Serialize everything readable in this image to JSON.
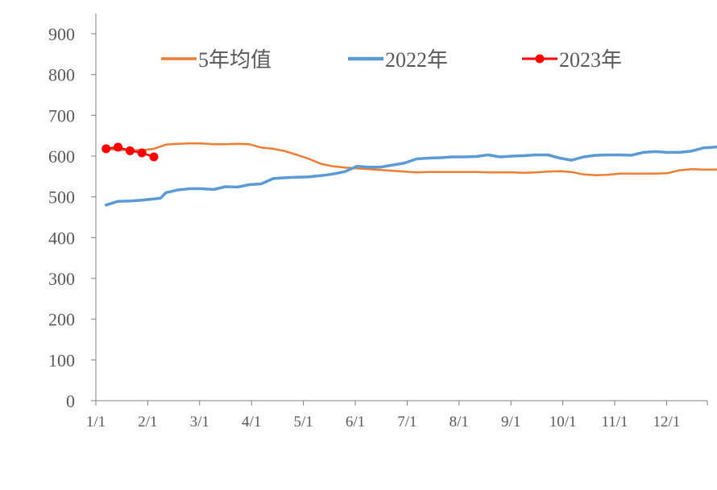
{
  "chart_data": {
    "type": "line",
    "title": "",
    "xlabel": "",
    "ylabel": "",
    "ylim": [
      0,
      900
    ],
    "y_ticks": [
      "0",
      "100",
      "200",
      "300",
      "400",
      "500",
      "600",
      "700",
      "800",
      "900"
    ],
    "x_tick_labels": [
      "1/1",
      "2/1",
      "3/1",
      "4/1",
      "5/1",
      "6/1",
      "7/1",
      "8/1",
      "9/1",
      "10/1",
      "11/1",
      "12/1"
    ],
    "x_tick_days": [
      1,
      32,
      60,
      91,
      121,
      152,
      182,
      213,
      244,
      274,
      305,
      335
    ],
    "x_range_days": [
      1,
      365
    ],
    "grid": false,
    "legend_position": "top",
    "series": [
      {
        "name": "5年均值",
        "color": "#ED7D31",
        "marker": "none",
        "points": [
          [
            7,
            618
          ],
          [
            14,
            615
          ],
          [
            21,
            615
          ],
          [
            28,
            614
          ],
          [
            35,
            618
          ],
          [
            42,
            628
          ],
          [
            49,
            630
          ],
          [
            56,
            631
          ],
          [
            63,
            631
          ],
          [
            70,
            629
          ],
          [
            77,
            629
          ],
          [
            84,
            630
          ],
          [
            91,
            629
          ],
          [
            98,
            621
          ],
          [
            105,
            618
          ],
          [
            112,
            612
          ],
          [
            119,
            603
          ],
          [
            126,
            593
          ],
          [
            133,
            581
          ],
          [
            140,
            575
          ],
          [
            147,
            572
          ],
          [
            154,
            570
          ],
          [
            161,
            568
          ],
          [
            168,
            566
          ],
          [
            175,
            564
          ],
          [
            182,
            562
          ],
          [
            189,
            560
          ],
          [
            196,
            561
          ],
          [
            203,
            561
          ],
          [
            210,
            561
          ],
          [
            217,
            561
          ],
          [
            224,
            561
          ],
          [
            231,
            560
          ],
          [
            238,
            560
          ],
          [
            245,
            560
          ],
          [
            252,
            559
          ],
          [
            259,
            560
          ],
          [
            266,
            562
          ],
          [
            273,
            563
          ],
          [
            280,
            561
          ],
          [
            287,
            555
          ],
          [
            294,
            553
          ],
          [
            301,
            554
          ],
          [
            308,
            557
          ],
          [
            315,
            557
          ],
          [
            322,
            557
          ],
          [
            329,
            557
          ],
          [
            336,
            558
          ],
          [
            343,
            565
          ],
          [
            350,
            568
          ],
          [
            357,
            567
          ],
          [
            364,
            567
          ],
          [
            371,
            570
          ],
          [
            378,
            574
          ],
          [
            385,
            575
          ],
          [
            392,
            575
          ],
          [
            399,
            576
          ],
          [
            406,
            576
          ],
          [
            413,
            575
          ],
          [
            420,
            576
          ],
          [
            427,
            585
          ],
          [
            434,
            585
          ]
        ]
      },
      {
        "name": "2022年",
        "color": "#5B9BD5",
        "marker": "none",
        "points": [
          [
            7,
            480
          ],
          [
            14,
            489
          ],
          [
            21,
            490
          ],
          [
            28,
            492
          ],
          [
            35,
            495
          ],
          [
            39,
            497
          ],
          [
            42,
            510
          ],
          [
            49,
            517
          ],
          [
            56,
            520
          ],
          [
            63,
            520
          ],
          [
            70,
            518
          ],
          [
            77,
            525
          ],
          [
            84,
            524
          ],
          [
            91,
            530
          ],
          [
            98,
            532
          ],
          [
            105,
            545
          ],
          [
            112,
            547
          ],
          [
            119,
            548
          ],
          [
            126,
            549
          ],
          [
            133,
            552
          ],
          [
            140,
            556
          ],
          [
            147,
            562
          ],
          [
            154,
            575
          ],
          [
            161,
            573
          ],
          [
            168,
            573
          ],
          [
            175,
            578
          ],
          [
            182,
            583
          ],
          [
            189,
            593
          ],
          [
            196,
            595
          ],
          [
            203,
            596
          ],
          [
            210,
            598
          ],
          [
            217,
            598
          ],
          [
            224,
            599
          ],
          [
            231,
            603
          ],
          [
            238,
            598
          ],
          [
            245,
            600
          ],
          [
            252,
            601
          ],
          [
            259,
            603
          ],
          [
            266,
            603
          ],
          [
            273,
            595
          ],
          [
            280,
            590
          ],
          [
            287,
            598
          ],
          [
            294,
            602
          ],
          [
            301,
            603
          ],
          [
            308,
            603
          ],
          [
            315,
            602
          ],
          [
            322,
            609
          ],
          [
            329,
            611
          ],
          [
            336,
            609
          ],
          [
            343,
            609
          ],
          [
            350,
            612
          ],
          [
            357,
            620
          ],
          [
            364,
            622
          ],
          [
            371,
            624
          ],
          [
            378,
            626
          ],
          [
            385,
            626
          ],
          [
            392,
            624
          ],
          [
            399,
            620
          ],
          [
            406,
            620
          ],
          [
            413,
            621
          ],
          [
            420,
            621
          ],
          [
            427,
            620
          ],
          [
            434,
            620
          ]
        ]
      },
      {
        "name": "2023年",
        "color": "#FF0000",
        "marker": "circle",
        "points": [
          [
            7,
            618
          ],
          [
            14,
            622
          ],
          [
            21,
            613
          ],
          [
            28,
            608
          ],
          [
            35,
            598
          ]
        ]
      }
    ]
  }
}
